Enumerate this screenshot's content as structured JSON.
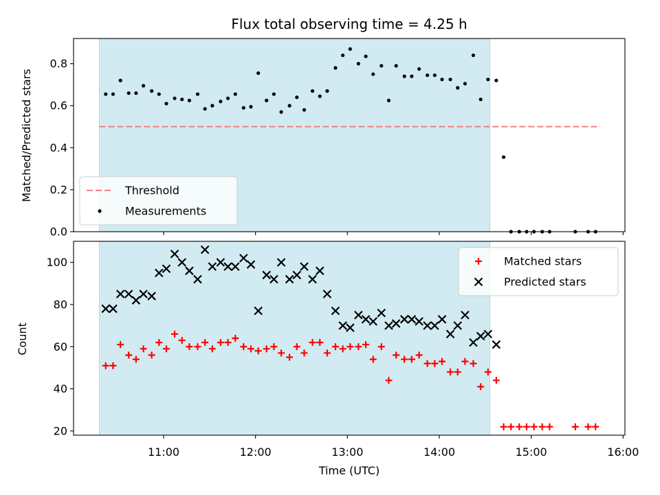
{
  "chart_data": {
    "type": "scatter",
    "title": "Flux total observing time = 4.25 h",
    "xlabel": "Time (UTC)",
    "x_unit": "hours UTC",
    "xlim": [
      10.02,
      16.02
    ],
    "x_ticks": [
      11,
      12,
      13,
      14,
      15,
      16
    ],
    "x_tick_labels": [
      "11:00",
      "12:00",
      "13:00",
      "14:00",
      "15:00",
      "16:00"
    ],
    "shaded_interval": [
      10.3,
      14.55
    ],
    "shaded_color": "#add8e6",
    "panels": [
      {
        "id": "ratio",
        "ylabel": "Matched/Predicted stars",
        "ylim": [
          0.0,
          0.92
        ],
        "y_ticks": [
          0.0,
          0.2,
          0.4,
          0.6,
          0.8
        ],
        "y_tick_labels": [
          "0.0",
          "0.2",
          "0.4",
          "0.6",
          "0.8"
        ],
        "legend_position": "lower-left",
        "series": [
          {
            "name": "Threshold",
            "kind": "line",
            "style": "dashed",
            "color": "#f08080",
            "x": [
              10.3,
              15.75
            ],
            "y": [
              0.5,
              0.5
            ]
          },
          {
            "name": "Measurements",
            "kind": "scatter",
            "marker": "dot",
            "color": "#000000",
            "x": [
              10.37,
              10.45,
              10.53,
              10.62,
              10.7,
              10.78,
              10.87,
              10.95,
              11.03,
              11.12,
              11.2,
              11.28,
              11.37,
              11.45,
              11.53,
              11.62,
              11.7,
              11.78,
              11.87,
              11.95,
              12.03,
              12.12,
              12.2,
              12.28,
              12.37,
              12.45,
              12.53,
              12.62,
              12.7,
              12.78,
              12.87,
              12.95,
              13.03,
              13.12,
              13.2,
              13.28,
              13.37,
              13.45,
              13.53,
              13.62,
              13.7,
              13.78,
              13.87,
              13.95,
              14.03,
              14.12,
              14.2,
              14.28,
              14.37,
              14.45,
              14.53,
              14.62,
              14.7,
              14.78,
              14.87,
              14.95,
              15.03,
              15.12,
              15.2,
              15.48,
              15.62,
              15.7
            ],
            "y": [
              0.655,
              0.655,
              0.72,
              0.66,
              0.66,
              0.695,
              0.67,
              0.655,
              0.61,
              0.635,
              0.63,
              0.625,
              0.655,
              0.585,
              0.6,
              0.62,
              0.635,
              0.655,
              0.59,
              0.595,
              0.755,
              0.625,
              0.655,
              0.57,
              0.6,
              0.64,
              0.58,
              0.67,
              0.645,
              0.67,
              0.78,
              0.84,
              0.87,
              0.8,
              0.835,
              0.75,
              0.79,
              0.625,
              0.79,
              0.74,
              0.74,
              0.775,
              0.745,
              0.745,
              0.725,
              0.725,
              0.685,
              0.705,
              0.84,
              0.63,
              0.725,
              0.72,
              0.355,
              0.0,
              0.0,
              0.0,
              0.0,
              0.0,
              0.0,
              0.0,
              0.0,
              0.0
            ]
          }
        ]
      },
      {
        "id": "counts",
        "ylabel": "Count",
        "ylim": [
          18,
          110
        ],
        "y_ticks": [
          20,
          40,
          60,
          80,
          100
        ],
        "y_tick_labels": [
          "20",
          "40",
          "60",
          "80",
          "100"
        ],
        "legend_position": "top-right",
        "series": [
          {
            "name": "Matched stars",
            "kind": "scatter",
            "marker": "plus",
            "color": "#ff0000",
            "x": [
              10.37,
              10.45,
              10.53,
              10.62,
              10.7,
              10.78,
              10.87,
              10.95,
              11.03,
              11.12,
              11.2,
              11.28,
              11.37,
              11.45,
              11.53,
              11.62,
              11.7,
              11.78,
              11.87,
              11.95,
              12.03,
              12.12,
              12.2,
              12.28,
              12.37,
              12.45,
              12.53,
              12.62,
              12.7,
              12.78,
              12.87,
              12.95,
              13.03,
              13.12,
              13.2,
              13.28,
              13.37,
              13.45,
              13.53,
              13.62,
              13.7,
              13.78,
              13.87,
              13.95,
              14.03,
              14.12,
              14.2,
              14.28,
              14.37,
              14.45,
              14.53,
              14.62,
              14.7,
              14.78,
              14.87,
              14.95,
              15.03,
              15.12,
              15.2,
              15.48,
              15.62,
              15.7
            ],
            "y": [
              51,
              51,
              61,
              56,
              54,
              59,
              56,
              62,
              59,
              66,
              63,
              60,
              60,
              62,
              59,
              62,
              62,
              64,
              60,
              59,
              58,
              59,
              60,
              57,
              55,
              60,
              57,
              62,
              62,
              57,
              60,
              59,
              60,
              60,
              61,
              54,
              60,
              44,
              56,
              54,
              54,
              56,
              52,
              52,
              53,
              48,
              48,
              53,
              52,
              41,
              48,
              44,
              22,
              22,
              22,
              22,
              22,
              22,
              22,
              22,
              22,
              22
            ]
          },
          {
            "name": "Predicted stars",
            "kind": "scatter",
            "marker": "x",
            "color": "#000000",
            "x": [
              10.37,
              10.45,
              10.53,
              10.62,
              10.7,
              10.78,
              10.87,
              10.95,
              11.03,
              11.12,
              11.2,
              11.28,
              11.37,
              11.45,
              11.53,
              11.62,
              11.7,
              11.78,
              11.87,
              11.95,
              12.03,
              12.12,
              12.2,
              12.28,
              12.37,
              12.45,
              12.53,
              12.62,
              12.7,
              12.78,
              12.87,
              12.95,
              13.03,
              13.12,
              13.2,
              13.28,
              13.37,
              13.45,
              13.53,
              13.62,
              13.7,
              13.78,
              13.87,
              13.95,
              14.03,
              14.12,
              14.2,
              14.28,
              14.37,
              14.45,
              14.53,
              14.62
            ],
            "y": [
              78,
              78,
              85,
              85,
              82,
              85,
              84,
              95,
              97,
              104,
              100,
              96,
              92,
              106,
              98,
              100,
              98,
              98,
              102,
              99,
              77,
              94,
              92,
              100,
              92,
              94,
              98,
              92,
              96,
              85,
              77,
              70,
              69,
              75,
              73,
              72,
              76,
              70,
              71,
              73,
              73,
              72,
              70,
              70,
              73,
              66,
              70,
              75,
              62,
              65,
              66,
              61
            ]
          }
        ]
      }
    ]
  }
}
